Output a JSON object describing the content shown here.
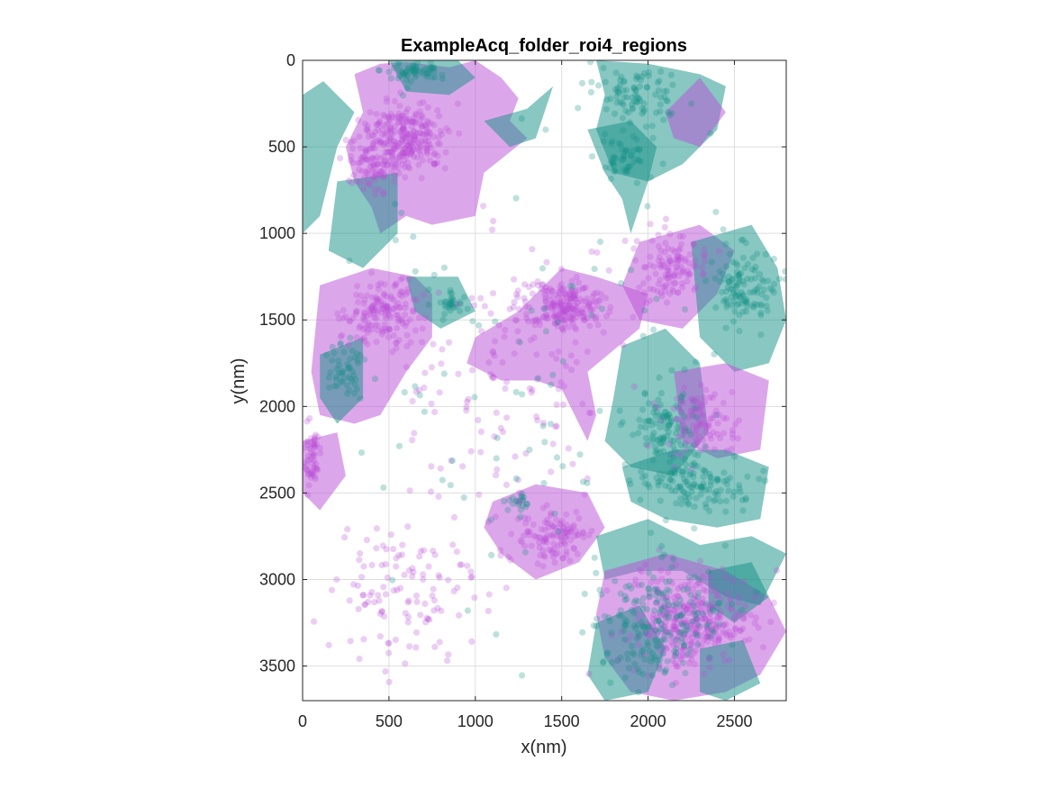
{
  "chart_data": {
    "type": "scatter",
    "title": "ExampleAcq_folder_roi4_regions",
    "xlabel": "x(nm)",
    "ylabel": "y(nm)",
    "xlim": [
      0,
      2800
    ],
    "ylim": [
      0,
      3700
    ],
    "y_reversed": true,
    "x_ticks": [
      0,
      500,
      1000,
      1500,
      2000,
      2500
    ],
    "y_ticks": [
      0,
      500,
      1000,
      1500,
      2000,
      2500,
      3000,
      3500
    ],
    "grid": true,
    "legend": "none",
    "colors": {
      "magenta": "#b94fd6",
      "teal": "#118f86"
    },
    "regions": [
      {
        "color": "teal",
        "points": [
          [
            0,
            200
          ],
          [
            120,
            120
          ],
          [
            300,
            300
          ],
          [
            200,
            500
          ],
          [
            100,
            900
          ],
          [
            0,
            1000
          ]
        ]
      },
      {
        "color": "magenta",
        "points": [
          [
            300,
            80
          ],
          [
            450,
            20
          ],
          [
            600,
            10
          ],
          [
            850,
            40
          ],
          [
            1000,
            0
          ],
          [
            1150,
            100
          ],
          [
            1250,
            220
          ],
          [
            1200,
            350
          ],
          [
            1300,
            450
          ],
          [
            1050,
            650
          ],
          [
            1000,
            900
          ],
          [
            750,
            950
          ],
          [
            600,
            900
          ],
          [
            450,
            1000
          ],
          [
            400,
            850
          ],
          [
            300,
            700
          ],
          [
            250,
            500
          ],
          [
            350,
            300
          ]
        ]
      },
      {
        "color": "teal",
        "points": [
          [
            500,
            0
          ],
          [
            900,
            0
          ],
          [
            1000,
            100
          ],
          [
            850,
            200
          ],
          [
            600,
            180
          ]
        ]
      },
      {
        "color": "teal",
        "points": [
          [
            1050,
            350
          ],
          [
            1300,
            280
          ],
          [
            1450,
            150
          ],
          [
            1350,
            450
          ],
          [
            1200,
            500
          ]
        ]
      },
      {
        "color": "teal",
        "points": [
          [
            1700,
            0
          ],
          [
            2000,
            20
          ],
          [
            2300,
            80
          ],
          [
            2450,
            150
          ],
          [
            2400,
            400
          ],
          [
            2200,
            600
          ],
          [
            2000,
            700
          ],
          [
            1800,
            650
          ],
          [
            1700,
            400
          ],
          [
            1750,
            200
          ]
        ]
      },
      {
        "color": "teal",
        "points": [
          [
            1650,
            400
          ],
          [
            1900,
            350
          ],
          [
            2050,
            500
          ],
          [
            2000,
            700
          ],
          [
            1900,
            1000
          ],
          [
            1850,
            800
          ],
          [
            1750,
            650
          ]
        ]
      },
      {
        "color": "magenta",
        "points": [
          [
            2100,
            300
          ],
          [
            2300,
            100
          ],
          [
            2450,
            300
          ],
          [
            2300,
            500
          ],
          [
            2150,
            450
          ]
        ]
      },
      {
        "color": "teal",
        "points": [
          [
            200,
            700
          ],
          [
            550,
            650
          ],
          [
            550,
            1000
          ],
          [
            350,
            1200
          ],
          [
            150,
            1100
          ]
        ]
      },
      {
        "color": "magenta",
        "points": [
          [
            1000,
            1600
          ],
          [
            1250,
            1450
          ],
          [
            1500,
            1200
          ],
          [
            1700,
            1250
          ],
          [
            2000,
            1350
          ],
          [
            1950,
            1550
          ],
          [
            1650,
            1800
          ],
          [
            1700,
            2050
          ],
          [
            1650,
            2200
          ],
          [
            1500,
            1900
          ],
          [
            1350,
            1850
          ],
          [
            1150,
            1850
          ],
          [
            950,
            1750
          ]
        ]
      },
      {
        "color": "magenta",
        "points": [
          [
            100,
            1300
          ],
          [
            400,
            1200
          ],
          [
            650,
            1250
          ],
          [
            750,
            1350
          ],
          [
            750,
            1600
          ],
          [
            600,
            1800
          ],
          [
            450,
            2050
          ],
          [
            300,
            2100
          ],
          [
            100,
            2050
          ],
          [
            50,
            1800
          ],
          [
            80,
            1500
          ]
        ]
      },
      {
        "color": "teal",
        "points": [
          [
            100,
            1700
          ],
          [
            350,
            1600
          ],
          [
            350,
            1950
          ],
          [
            200,
            2100
          ],
          [
            100,
            1950
          ]
        ]
      },
      {
        "color": "teal",
        "points": [
          [
            600,
            1250
          ],
          [
            900,
            1250
          ],
          [
            1000,
            1450
          ],
          [
            800,
            1550
          ],
          [
            650,
            1450
          ]
        ]
      },
      {
        "color": "magenta",
        "points": [
          [
            1950,
            1050
          ],
          [
            2300,
            950
          ],
          [
            2500,
            1100
          ],
          [
            2400,
            1350
          ],
          [
            2200,
            1550
          ],
          [
            1950,
            1500
          ],
          [
            1850,
            1300
          ]
        ]
      },
      {
        "color": "teal",
        "points": [
          [
            2250,
            1050
          ],
          [
            2600,
            950
          ],
          [
            2750,
            1200
          ],
          [
            2800,
            1500
          ],
          [
            2700,
            1750
          ],
          [
            2500,
            1800
          ],
          [
            2300,
            1600
          ]
        ]
      },
      {
        "color": "teal",
        "points": [
          [
            1850,
            1650
          ],
          [
            2100,
            1550
          ],
          [
            2300,
            1750
          ],
          [
            2350,
            2150
          ],
          [
            2150,
            2400
          ],
          [
            1900,
            2350
          ],
          [
            1750,
            2200
          ],
          [
            1800,
            1950
          ]
        ]
      },
      {
        "color": "magenta",
        "points": [
          [
            2150,
            1800
          ],
          [
            2450,
            1750
          ],
          [
            2700,
            1850
          ],
          [
            2650,
            2250
          ],
          [
            2400,
            2300
          ],
          [
            2200,
            2200
          ]
        ]
      },
      {
        "color": "teal",
        "points": [
          [
            1850,
            2350
          ],
          [
            2150,
            2250
          ],
          [
            2450,
            2250
          ],
          [
            2700,
            2350
          ],
          [
            2650,
            2650
          ],
          [
            2400,
            2700
          ],
          [
            2100,
            2650
          ],
          [
            1900,
            2550
          ]
        ]
      },
      {
        "color": "magenta",
        "points": [
          [
            1100,
            2550
          ],
          [
            1350,
            2450
          ],
          [
            1650,
            2500
          ],
          [
            1750,
            2700
          ],
          [
            1600,
            2900
          ],
          [
            1350,
            3000
          ],
          [
            1150,
            2850
          ],
          [
            1050,
            2700
          ]
        ]
      },
      {
        "color": "teal",
        "points": [
          [
            1700,
            2750
          ],
          [
            2000,
            2650
          ],
          [
            2300,
            2800
          ],
          [
            2600,
            2750
          ],
          [
            2800,
            2850
          ],
          [
            2650,
            3150
          ],
          [
            2450,
            3100
          ],
          [
            2200,
            2950
          ],
          [
            1950,
            2950
          ],
          [
            1750,
            3000
          ]
        ]
      },
      {
        "color": "magenta",
        "points": [
          [
            1750,
            2950
          ],
          [
            2100,
            2850
          ],
          [
            2450,
            2950
          ],
          [
            2700,
            3100
          ],
          [
            2800,
            3300
          ],
          [
            2650,
            3550
          ],
          [
            2450,
            3650
          ],
          [
            2150,
            3700
          ],
          [
            1900,
            3650
          ],
          [
            1750,
            3450
          ],
          [
            1700,
            3200
          ]
        ]
      },
      {
        "color": "teal",
        "points": [
          [
            1700,
            3250
          ],
          [
            1950,
            3150
          ],
          [
            2100,
            3400
          ],
          [
            2000,
            3650
          ],
          [
            1750,
            3700
          ],
          [
            1650,
            3550
          ]
        ]
      },
      {
        "color": "teal",
        "points": [
          [
            2300,
            3400
          ],
          [
            2550,
            3350
          ],
          [
            2650,
            3600
          ],
          [
            2450,
            3700
          ],
          [
            2300,
            3650
          ]
        ]
      },
      {
        "color": "teal",
        "points": [
          [
            2350,
            2950
          ],
          [
            2600,
            2900
          ],
          [
            2700,
            3100
          ],
          [
            2500,
            3250
          ],
          [
            2350,
            3150
          ]
        ]
      },
      {
        "color": "magenta",
        "points": [
          [
            0,
            2200
          ],
          [
            200,
            2150
          ],
          [
            250,
            2400
          ],
          [
            100,
            2600
          ],
          [
            0,
            2500
          ]
        ]
      }
    ],
    "clusters": [
      {
        "color": "magenta",
        "center": [
          600,
          450
        ],
        "spread": [
          220,
          200
        ],
        "count": 260
      },
      {
        "color": "magenta",
        "center": [
          400,
          600
        ],
        "spread": [
          150,
          150
        ],
        "count": 90
      },
      {
        "color": "teal",
        "center": [
          650,
          60
        ],
        "spread": [
          200,
          60
        ],
        "count": 60
      },
      {
        "color": "teal",
        "center": [
          1950,
          200
        ],
        "spread": [
          250,
          150
        ],
        "count": 90
      },
      {
        "color": "teal",
        "center": [
          1850,
          550
        ],
        "spread": [
          150,
          120
        ],
        "count": 50
      },
      {
        "color": "magenta",
        "center": [
          1520,
          1420
        ],
        "spread": [
          220,
          150
        ],
        "count": 200
      },
      {
        "color": "magenta",
        "center": [
          450,
          1450
        ],
        "spread": [
          220,
          200
        ],
        "count": 160
      },
      {
        "color": "teal",
        "center": [
          250,
          1800
        ],
        "spread": [
          100,
          150
        ],
        "count": 50
      },
      {
        "color": "teal",
        "center": [
          850,
          1400
        ],
        "spread": [
          80,
          60
        ],
        "count": 30
      },
      {
        "color": "magenta",
        "center": [
          2150,
          1200
        ],
        "spread": [
          200,
          180
        ],
        "count": 120
      },
      {
        "color": "teal",
        "center": [
          2550,
          1300
        ],
        "spread": [
          180,
          220
        ],
        "count": 120
      },
      {
        "color": "teal",
        "center": [
          2100,
          2100
        ],
        "spread": [
          200,
          250
        ],
        "count": 110
      },
      {
        "color": "magenta",
        "center": [
          2300,
          2100
        ],
        "spread": [
          200,
          200
        ],
        "count": 100
      },
      {
        "color": "teal",
        "center": [
          2250,
          2450
        ],
        "spread": [
          300,
          150
        ],
        "count": 120
      },
      {
        "color": "magenta",
        "center": [
          1450,
          2750
        ],
        "spread": [
          200,
          150
        ],
        "count": 110
      },
      {
        "color": "magenta",
        "center": [
          2250,
          3250
        ],
        "spread": [
          350,
          280
        ],
        "count": 320
      },
      {
        "color": "teal",
        "center": [
          2050,
          3250
        ],
        "spread": [
          350,
          350
        ],
        "count": 220
      },
      {
        "color": "magenta",
        "center": [
          50,
          2300
        ],
        "spread": [
          60,
          200
        ],
        "count": 60
      },
      {
        "color": "teal",
        "center": [
          1250,
          2550
        ],
        "spread": [
          60,
          50
        ],
        "count": 20
      },
      {
        "color": "magenta",
        "center": [
          1200,
          1850
        ],
        "spread": [
          600,
          900
        ],
        "count": 150
      },
      {
        "color": "magenta",
        "center": [
          600,
          3100
        ],
        "spread": [
          450,
          400
        ],
        "count": 120
      },
      {
        "color": "teal",
        "center": [
          1400,
          1900
        ],
        "spread": [
          1200,
          1600
        ],
        "count": 110
      }
    ]
  }
}
